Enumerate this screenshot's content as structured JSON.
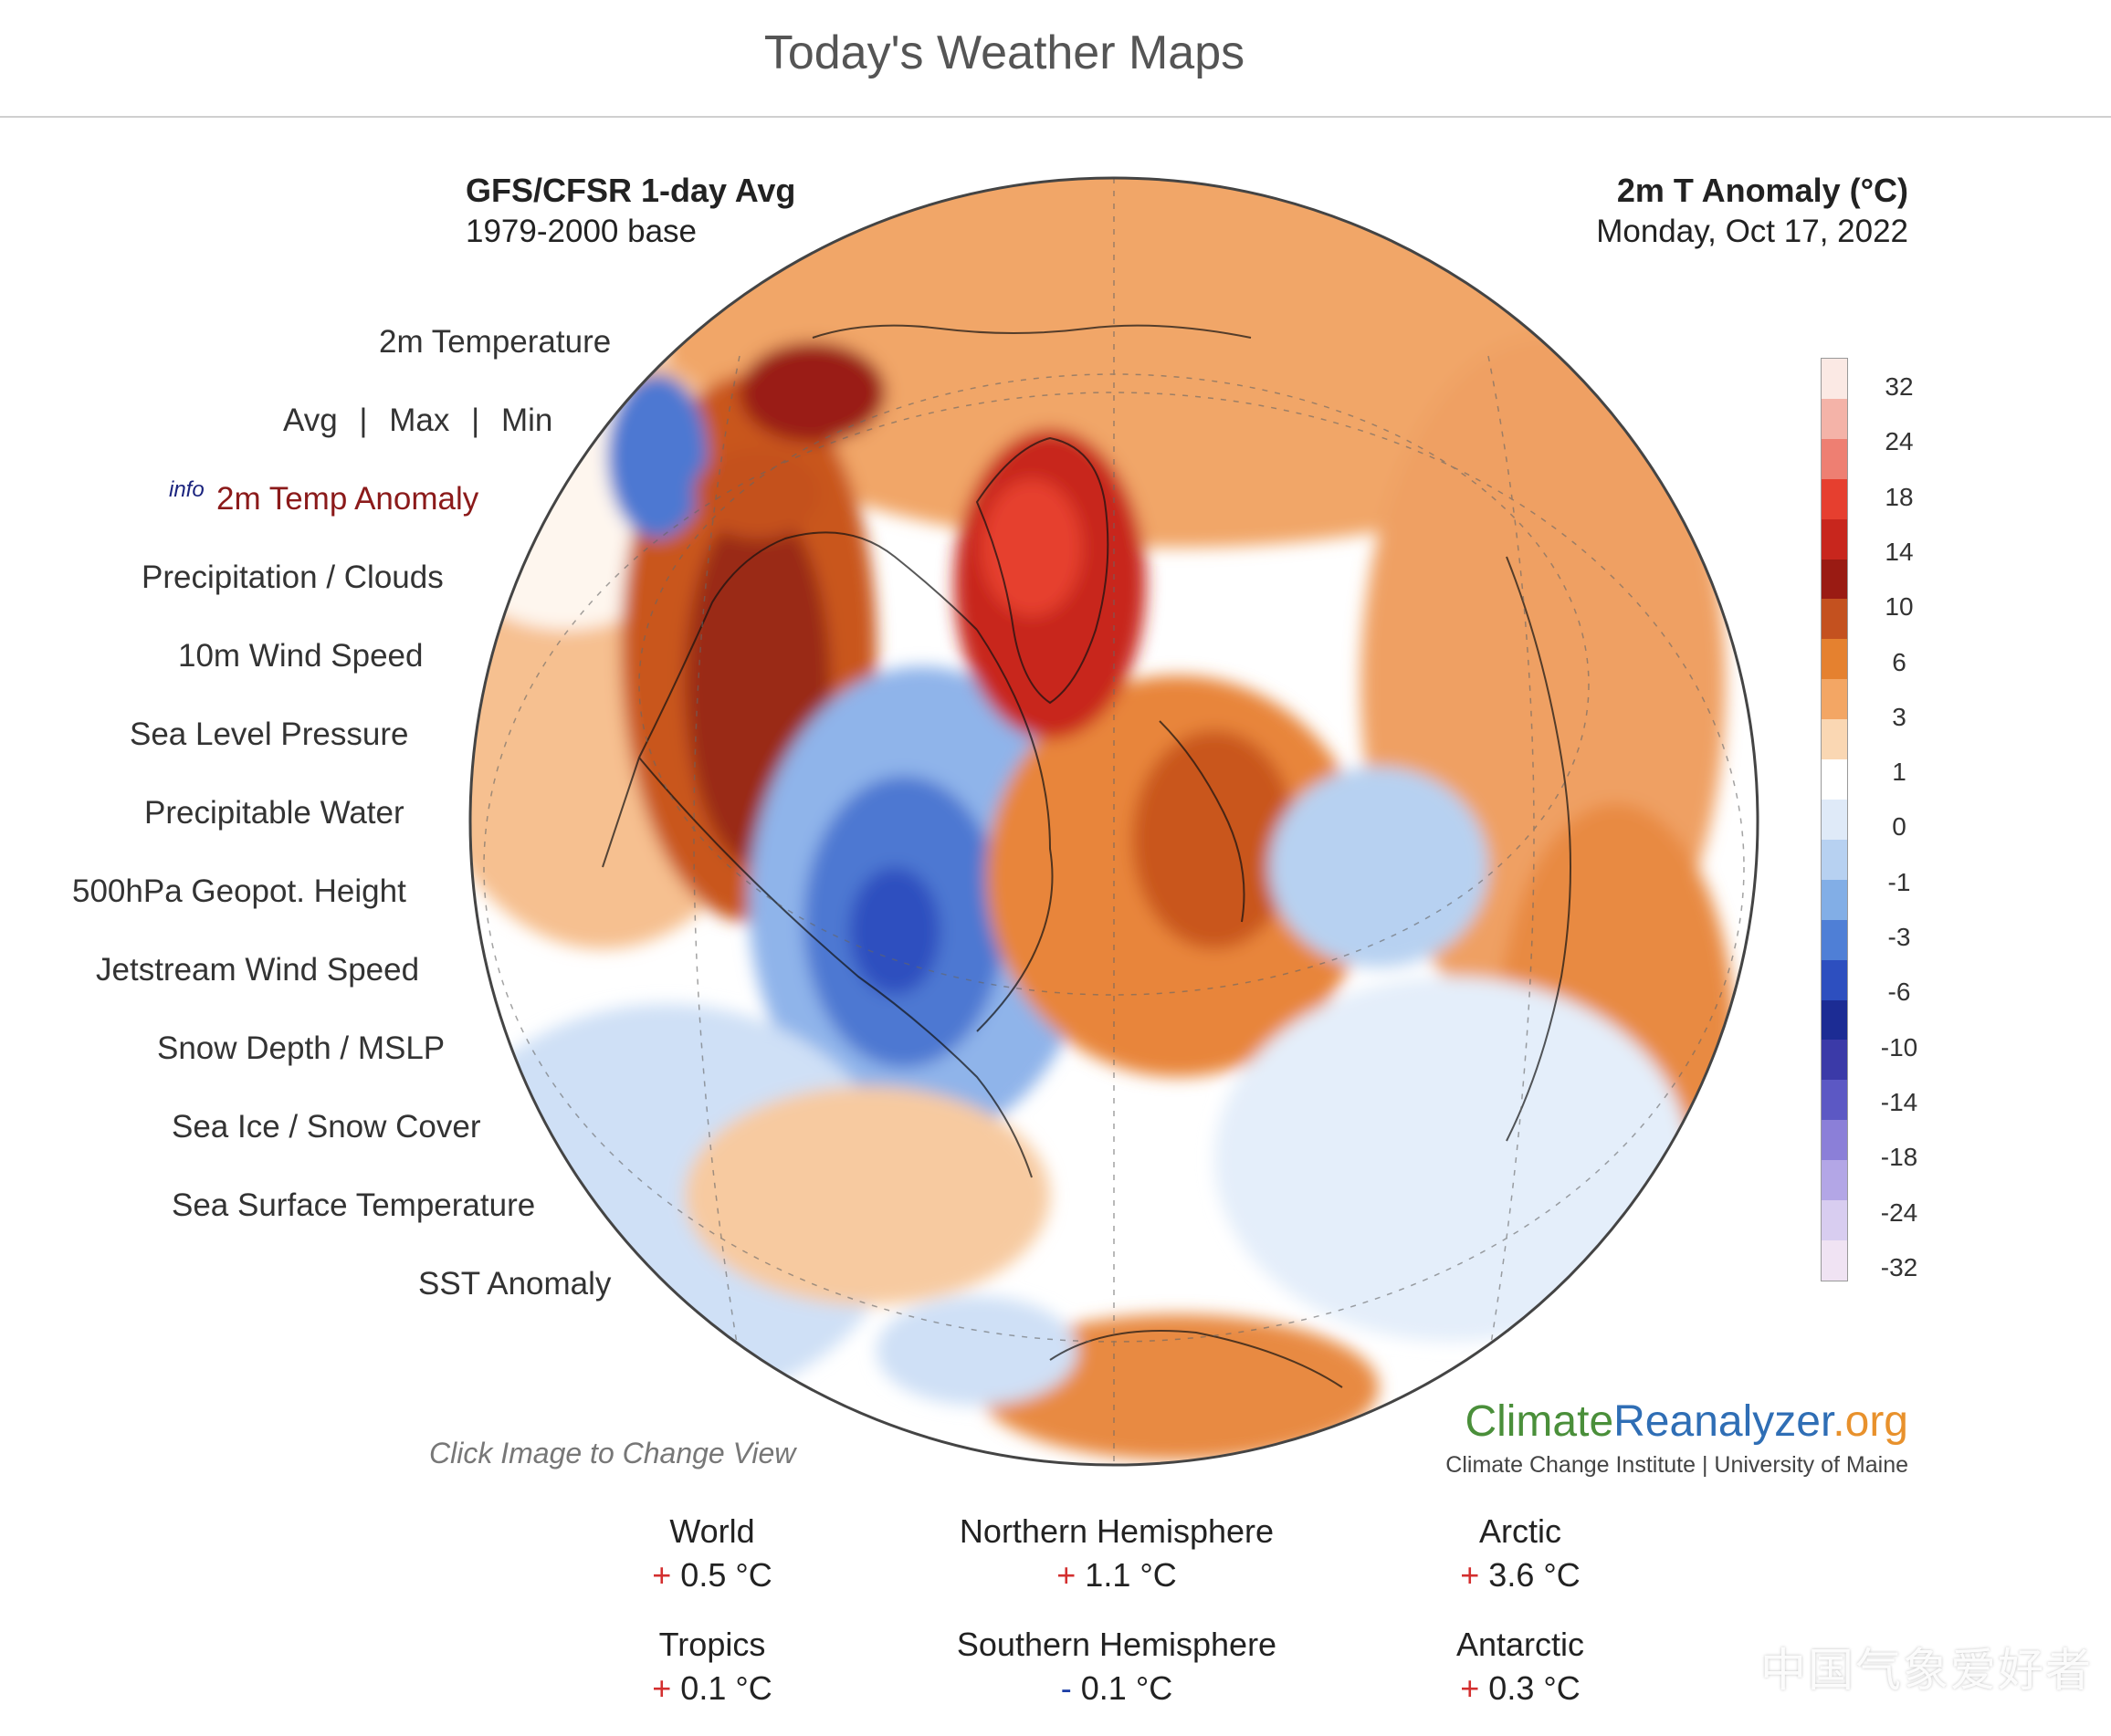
{
  "page": {
    "title": "Today's Weather Maps"
  },
  "map_header": {
    "left_title": "GFS/CFSR 1-day Avg",
    "left_subtitle": "1979-2000 base",
    "right_title": "2m T Anomaly (°C)",
    "right_subtitle": "Monday, Oct 17, 2022"
  },
  "menu": {
    "temperature": "2m Temperature",
    "avg": "Avg",
    "max": "Max",
    "min": "Min",
    "separator": "|",
    "info": "info",
    "temp_anomaly": "2m Temp Anomaly",
    "precip_clouds": "Precipitation / Clouds",
    "wind_speed": "10m Wind Speed",
    "sea_level_pressure": "Sea Level Pressure",
    "precipitable_water": "Precipitable Water",
    "geopot_height": "500hPa Geopot. Height",
    "jetstream": "Jetstream Wind Speed",
    "snow_depth": "Snow Depth / MSLP",
    "sea_ice": "Sea Ice / Snow Cover",
    "sst": "Sea Surface Temperature",
    "sst_anomaly": "SST Anomaly"
  },
  "hint": "Click Image to Change View",
  "brand": {
    "part1": "Climate",
    "part2": "Reanalyzer",
    "part3": ".org",
    "sub": "Climate Change Institute | University of Maine"
  },
  "legend": {
    "labels": [
      "32",
      "24",
      "18",
      "14",
      "10",
      "6",
      "3",
      "1",
      "0",
      "-1",
      "-3",
      "-6",
      "-10",
      "-14",
      "-18",
      "-24",
      "-32"
    ],
    "colors": [
      "#fbe9e4",
      "#f4b3a8",
      "#ee7f72",
      "#e63f2f",
      "#c8261d",
      "#9a1b13",
      "#c4511f",
      "#e5812f",
      "#f3a664",
      "#fad7b3",
      "#ffffff",
      "#dfeaf8",
      "#b7d1f1",
      "#82aee6",
      "#4f7fd6",
      "#2d4fbf",
      "#1c2c94",
      "#3b3aa8",
      "#5c58c4",
      "#8b7fd8",
      "#b3a6e6",
      "#d8cdf0",
      "#f0e3f3"
    ]
  },
  "stats": [
    {
      "label": "World",
      "sign": "+",
      "value": "0.5 °C"
    },
    {
      "label": "Northern Hemisphere",
      "sign": "+",
      "value": "1.1 °C"
    },
    {
      "label": "Arctic",
      "sign": "+",
      "value": "3.6 °C"
    },
    {
      "label": "Tropics",
      "sign": "+",
      "value": "0.1 °C"
    },
    {
      "label": "Southern Hemisphere",
      "sign": "-",
      "value": "0.1 °C"
    },
    {
      "label": "Antarctic",
      "sign": "+",
      "value": "0.3 °C"
    }
  ],
  "watermark": "中国气象爱好者",
  "colors": {
    "warm_anomaly": "#c8261d",
    "cold_anomaly": "#2d4fbf",
    "active_menu": "#8b1a1a"
  }
}
